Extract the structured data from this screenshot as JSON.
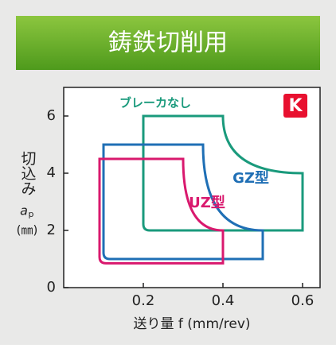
{
  "header": {
    "title": "鋳鉄切削用"
  },
  "chart_data": {
    "type": "region",
    "badge": "K",
    "ylabel": "切込み",
    "ylabel_symbol": "a",
    "ylabel_subscript": "p",
    "ylabel_unit": "(㎜)",
    "xlabel": "送り量 f (mm/rev)",
    "xlim": [
      0,
      0.644
    ],
    "ylim": [
      0,
      7
    ],
    "xticks": [
      0.2,
      0.4,
      0.6
    ],
    "yticks": [
      0,
      2,
      4,
      6
    ],
    "series": [
      {
        "name": "ブレーカなし",
        "color": "#1a9a7c",
        "x": [
          0.2,
          0.6
        ],
        "y": [
          2,
          6
        ],
        "corner": [
          0.4,
          4
        ]
      },
      {
        "name": "GZ型",
        "color": "#1f6fb5",
        "x": [
          0.1,
          0.5
        ],
        "y": [
          1,
          5
        ],
        "corner": [
          0.35,
          2
        ]
      },
      {
        "name": "UZ型",
        "color": "#d9196e",
        "x": [
          0.09,
          0.4
        ],
        "y": [
          0.85,
          4.5
        ],
        "corner": [
          0.3,
          2
        ]
      }
    ]
  }
}
